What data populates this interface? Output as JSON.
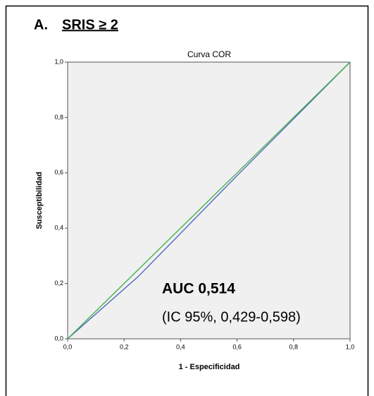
{
  "chart_data": {
    "type": "line",
    "panel_label": "A.",
    "panel_title": "SRIS ≥ 2",
    "title": "Curva COR",
    "x_label": "1 - Especificidad",
    "y_label": "Susceptibilidad",
    "annotations": [
      "AUC 0,514",
      "(IC 95%, 0,429-0,598)"
    ],
    "x": [
      0,
      0.25,
      0.6,
      1
    ],
    "series": [
      {
        "color": "#4a5fc1",
        "values": [
          0,
          0.225,
          0.59,
          1
        ]
      },
      {
        "color": "#3cb043",
        "values": [
          0,
          0.25,
          0.6,
          1
        ]
      }
    ],
    "xlim": [
      0,
      1
    ],
    "ylim": [
      0,
      1
    ],
    "xticks": [
      {
        "value": 0,
        "label": "0,0"
      },
      {
        "value": 0.2,
        "label": "0,2"
      },
      {
        "value": 0.4,
        "label": "0,4"
      },
      {
        "value": 0.6,
        "label": "0,6"
      },
      {
        "value": 0.8,
        "label": "0,8"
      },
      {
        "value": 1,
        "label": "1,0"
      }
    ],
    "yticks": [
      {
        "value": 0,
        "label": "0,0"
      },
      {
        "value": 0.2,
        "label": "0,2"
      },
      {
        "value": 0.4,
        "label": "0,4"
      },
      {
        "value": 0.6,
        "label": "0,6"
      },
      {
        "value": 0.8,
        "label": "0,8"
      },
      {
        "value": 1,
        "label": "1,0"
      }
    ],
    "grid": false
  }
}
